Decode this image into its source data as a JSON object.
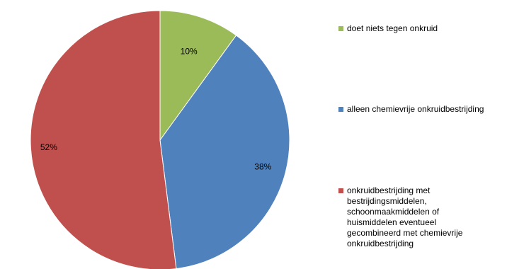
{
  "chart_data": {
    "type": "pie",
    "title": "",
    "categories": [
      "doet niets tegen onkruid",
      "alleen chemievrije onkruidbestrijding",
      "onkruidbestrijding met\nbestrijdingsmiddelen,\nschoonmaakmiddelen of\nhuismiddelen eventueel\ngecombineerd met chemievrije\nonkruidbestrijding"
    ],
    "values": [
      10,
      38,
      52
    ],
    "labels": [
      "10%",
      "38%",
      "52%"
    ],
    "colors": [
      "#9bbb59",
      "#4f81bd",
      "#c0504d"
    ],
    "legend": "right"
  }
}
